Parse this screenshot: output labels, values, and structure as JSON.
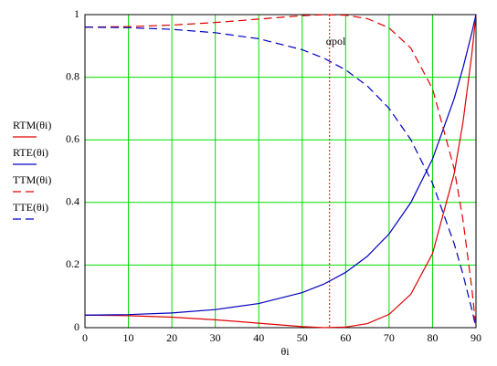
{
  "chart_data": {
    "type": "line",
    "x_label": "θi",
    "x": [
      0,
      10,
      20,
      30,
      40,
      50,
      55,
      60,
      65,
      70,
      75,
      80,
      85,
      87,
      89,
      90
    ],
    "series": [
      {
        "name": "RTM(θi)",
        "color": "#e00000",
        "dash": false,
        "values": [
          0.04,
          0.03837,
          0.03345,
          0.02525,
          0.01431,
          0.00328,
          0.00018,
          0.0018,
          0.01296,
          0.04249,
          0.10676,
          0.23682,
          0.49323,
          0.65546,
          0.86889,
          1
        ]
      },
      {
        "name": "RTE(θi)",
        "color": "#0000c0",
        "dash": false,
        "values": [
          0.04,
          0.04166,
          0.04708,
          0.05779,
          0.07716,
          0.11205,
          0.13927,
          0.17657,
          0.22806,
          0.29959,
          0.39936,
          0.53861,
          0.73234,
          0.82928,
          0.93948,
          1
        ]
      },
      {
        "name": "TTM(θi)",
        "color": "#e00000",
        "dash": true,
        "values": [
          0.96,
          0.96163,
          0.96655,
          0.97475,
          0.98569,
          0.99672,
          0.99982,
          0.9982,
          0.98704,
          0.95751,
          0.89324,
          0.76318,
          0.50677,
          0.34454,
          0.13111,
          0
        ]
      },
      {
        "name": "TTE(θi)",
        "color": "#0000c0",
        "dash": true,
        "values": [
          0.96,
          0.95834,
          0.95292,
          0.94221,
          0.92284,
          0.88795,
          0.86073,
          0.82343,
          0.77194,
          0.70041,
          0.60064,
          0.46139,
          0.26766,
          0.17072,
          0.06052,
          0
        ]
      }
    ],
    "annotation": {
      "text": "αpol",
      "x": 56.3,
      "color": "#e00000"
    },
    "xlim": [
      0,
      90
    ],
    "xticks": [
      0,
      10,
      20,
      30,
      40,
      50,
      60,
      70,
      80,
      90
    ],
    "ylim": [
      0,
      1
    ],
    "yticks": [
      0,
      0.2,
      0.4,
      0.6,
      0.8,
      1
    ],
    "grid": true,
    "grid_color": "#00dd00",
    "legend": "left"
  }
}
